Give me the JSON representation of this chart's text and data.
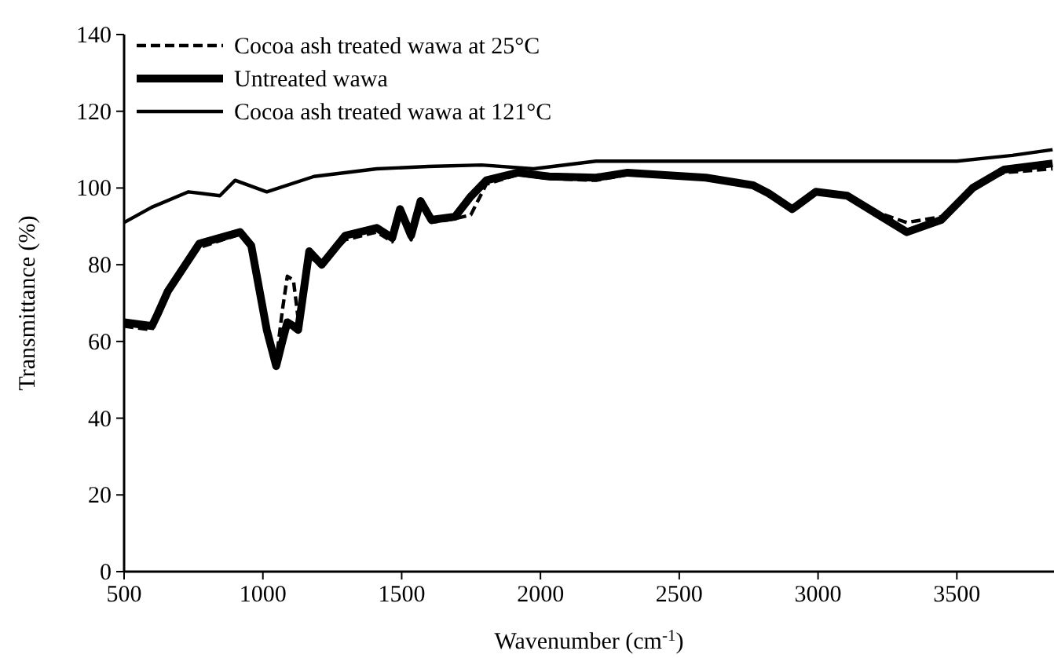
{
  "chart_data": {
    "type": "line",
    "xlabel": "Wavenumber (cm$^{-1}$)",
    "ylabel": "Transmittance (%)",
    "xlim": [
      500,
      3850
    ],
    "xticks": [
      500,
      1000,
      1500,
      2000,
      2500,
      3000,
      3500
    ],
    "ylim": [
      0,
      140
    ],
    "yticks": [
      0,
      20,
      40,
      60,
      80,
      100,
      120,
      140
    ],
    "grid": false,
    "legend": "top left",
    "series": [
      {
        "name": "Cocoa ash treated wawa at 25°C",
        "color": "#000000",
        "line_style": "dashed",
        "x": [
          500,
          600,
          620,
          657,
          771,
          918,
          958,
          1014,
          1048,
          1070,
          1088,
          1110,
          1127,
          1167,
          1212,
          1297,
          1410,
          1466,
          1494,
          1534,
          1568,
          1607,
          1692,
          1749,
          1805,
          1918,
          2031,
          2200,
          2314,
          2596,
          2766,
          2822,
          2907,
          2992,
          3105,
          3218,
          3320,
          3444,
          3557,
          3670,
          3845
        ],
        "values": [
          64,
          63,
          67,
          73,
          84.5,
          88,
          85,
          61,
          55,
          68,
          77,
          76,
          66,
          82,
          80,
          86.5,
          88.5,
          86,
          93.5,
          86.5,
          95.5,
          91,
          92,
          93,
          101,
          103.5,
          102.5,
          102,
          103.5,
          102.5,
          100.5,
          98.5,
          94.5,
          99,
          98,
          93.5,
          91,
          92.5,
          100.5,
          104,
          105
        ]
      },
      {
        "name": "Untreated wawa",
        "color": "#000000",
        "line_style": "solid",
        "x": [
          500,
          600,
          620,
          657,
          771,
          918,
          958,
          1014,
          1048,
          1070,
          1088,
          1110,
          1127,
          1167,
          1212,
          1297,
          1410,
          1466,
          1494,
          1534,
          1568,
          1607,
          1692,
          1749,
          1805,
          1918,
          2031,
          2200,
          2314,
          2596,
          2766,
          2822,
          2907,
          2992,
          3105,
          3218,
          3320,
          3444,
          3557,
          3670,
          3845
        ],
        "values": [
          65,
          64,
          67,
          73,
          85.5,
          88.5,
          85,
          63,
          53.6,
          60,
          65,
          64,
          63,
          83.5,
          80,
          87.6,
          89.6,
          87,
          94.5,
          87.6,
          96.6,
          91.7,
          92.5,
          97.8,
          102,
          104,
          103,
          102.7,
          104,
          102.7,
          100.7,
          98.6,
          94.5,
          99,
          98,
          93,
          88.5,
          91.7,
          100,
          104.8,
          106.4
        ]
      },
      {
        "name": "Cocoa ash treated wawa at 121°C",
        "color": "#000000",
        "line_style": "solid",
        "x": [
          500,
          600,
          732,
          845,
          900,
          1014,
          1184,
          1410,
          1596,
          1788,
          1975,
          2200,
          2500,
          2900,
          3200,
          3500,
          3700,
          3845
        ],
        "values": [
          91,
          95,
          99,
          98,
          102,
          99,
          103,
          105,
          105.6,
          106,
          105,
          107,
          107,
          107,
          107,
          107,
          108.5,
          110
        ]
      }
    ]
  }
}
